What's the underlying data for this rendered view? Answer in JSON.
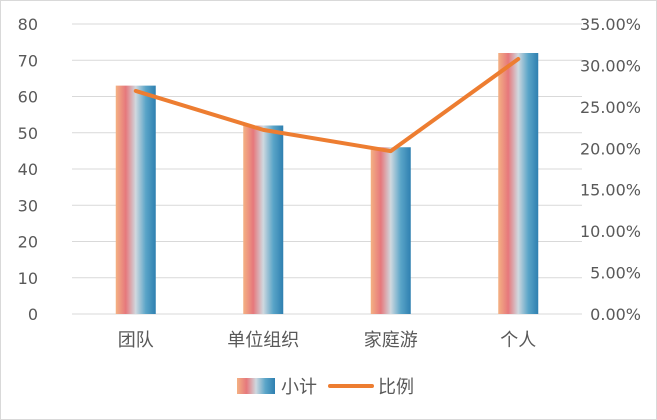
{
  "chart_data": {
    "type": "bar",
    "categories": [
      "团队",
      "单位组织",
      "家庭游",
      "个人"
    ],
    "series": [
      {
        "name": "小计",
        "type": "bar",
        "axis": "left",
        "values": [
          63,
          52,
          46,
          72
        ]
      },
      {
        "name": "比例",
        "type": "line",
        "axis": "right",
        "values": [
          0.2692,
          0.2222,
          0.1966,
          0.3077
        ]
      }
    ],
    "y_left": {
      "min": 0,
      "max": 80,
      "step": 10,
      "ticks": [
        "0",
        "10",
        "20",
        "30",
        "40",
        "50",
        "60",
        "70",
        "80"
      ]
    },
    "y_right": {
      "min": 0,
      "max": 0.35,
      "step": 0.05,
      "ticks": [
        "0.00%",
        "5.00%",
        "10.00%",
        "15.00%",
        "20.00%",
        "25.00%",
        "30.00%",
        "35.00%"
      ]
    },
    "legend": "bottom",
    "grid": true,
    "colors": {
      "line": "#ed7d31",
      "grid": "#d9d9d9",
      "bar_gradient": [
        "#f4b183",
        "#e6787c",
        "#cfd8df",
        "#5aa5c8",
        "#2e7fb0"
      ]
    }
  }
}
